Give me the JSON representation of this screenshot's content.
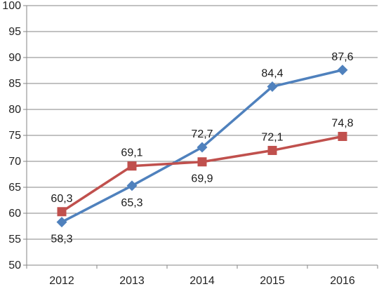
{
  "chart_data": {
    "type": "line",
    "title": "",
    "xlabel": "",
    "ylabel": "",
    "categories": [
      "2012",
      "2013",
      "2014",
      "2015",
      "2016"
    ],
    "ylim": [
      50,
      100
    ],
    "y_ticks": [
      "50",
      "55",
      "60",
      "65",
      "70",
      "75",
      "80",
      "85",
      "90",
      "95",
      "100"
    ],
    "grid": "horizontal",
    "legend": "none",
    "series": [
      {
        "color": "#4F81BD",
        "marker": "diamond",
        "values": [
          58.3,
          65.3,
          72.7,
          84.4,
          87.6
        ],
        "labels": [
          "58,3",
          "65,3",
          "72,7",
          "84,4",
          "87,6"
        ],
        "label_sides": [
          "below",
          "below",
          "above",
          "above",
          "above"
        ]
      },
      {
        "color": "#C0504D",
        "marker": "square",
        "values": [
          60.3,
          69.1,
          69.9,
          72.1,
          74.8
        ],
        "labels": [
          "60,3",
          "69,1",
          "69,9",
          "72,1",
          "74,8"
        ],
        "label_sides": [
          "above",
          "above",
          "below",
          "above",
          "above"
        ]
      }
    ]
  }
}
